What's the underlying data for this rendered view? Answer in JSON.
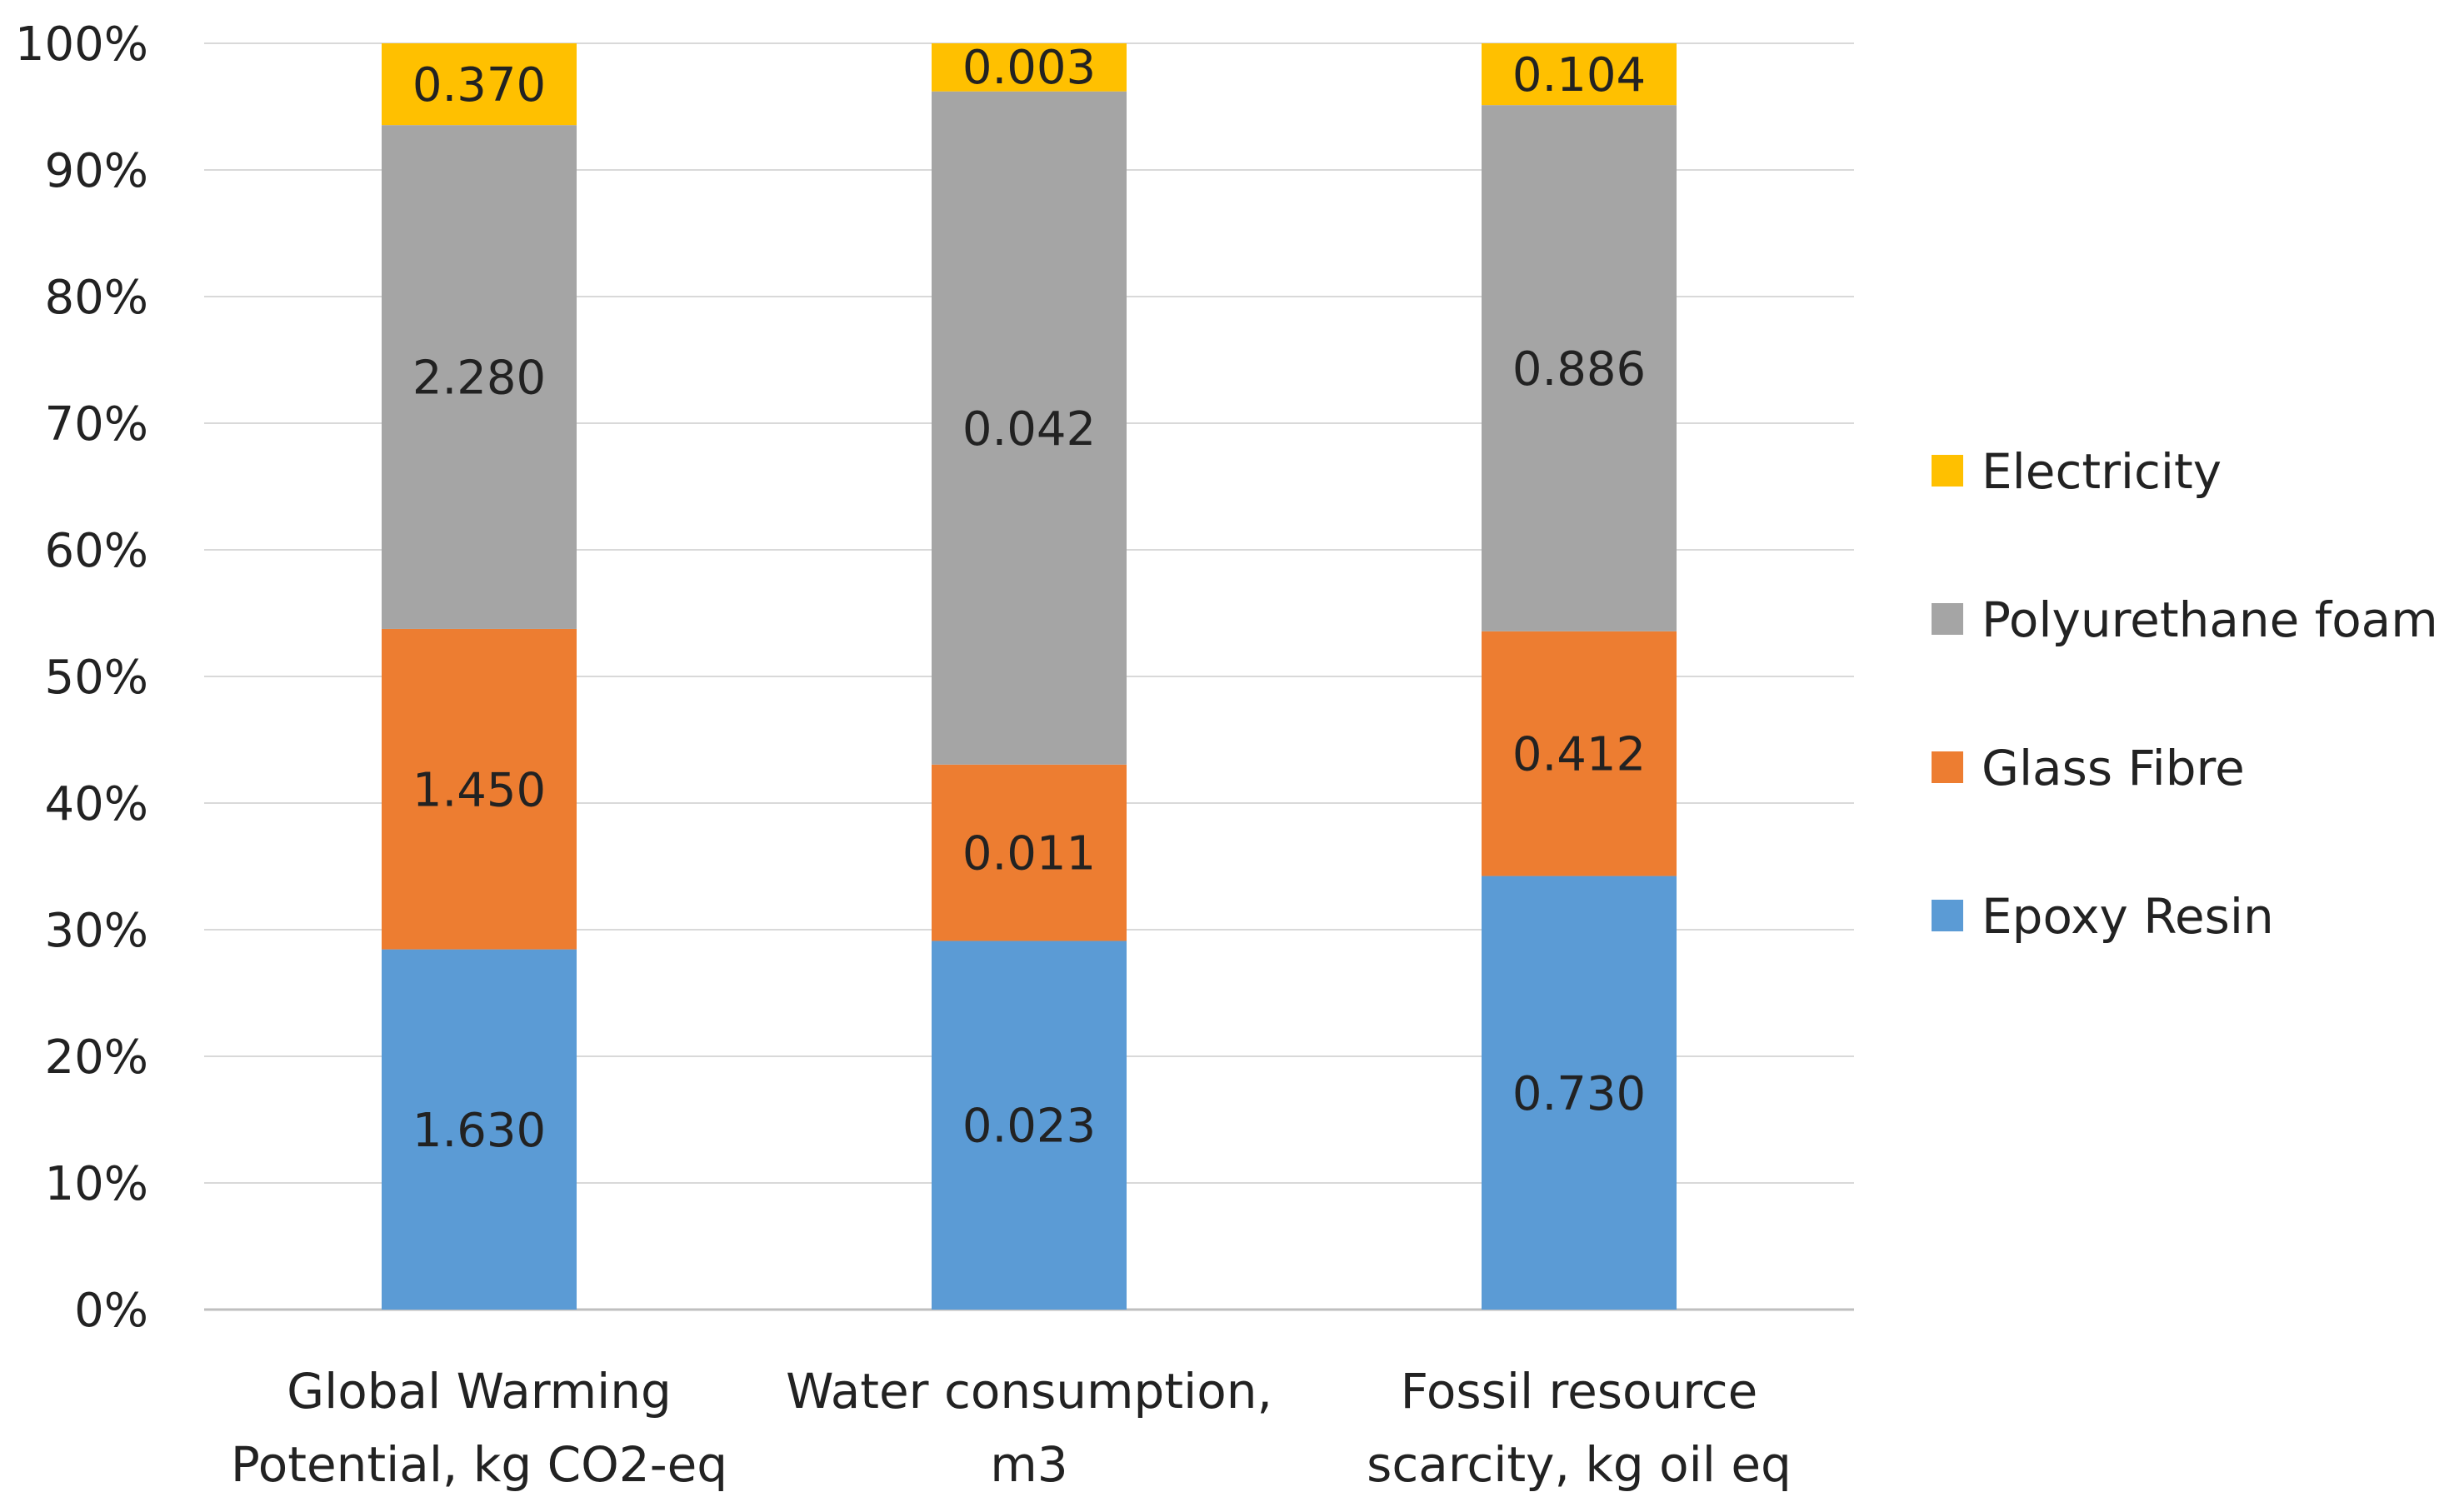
{
  "chart_data": {
    "type": "bar",
    "stacked": true,
    "normalized": true,
    "categories": [
      [
        "Global Warming",
        "Potential, kg CO2-eq"
      ],
      [
        "Water consumption,",
        "m3"
      ],
      [
        "Fossil resource",
        "scarcity, kg oil eq"
      ]
    ],
    "series": [
      {
        "name": "Epoxy Resin",
        "color": "#5B9BD5",
        "values": [
          1.63,
          0.023,
          0.73
        ],
        "labels": [
          "1.630",
          "0.023",
          "0.730"
        ]
      },
      {
        "name": "Glass Fibre",
        "color": "#ED7D31",
        "values": [
          1.45,
          0.011,
          0.412
        ],
        "labels": [
          "1.450",
          "0.011",
          "0.412"
        ]
      },
      {
        "name": "Polyurethane foam",
        "color": "#A5A5A5",
        "values": [
          2.28,
          0.042,
          0.886
        ],
        "labels": [
          "2.280",
          "0.042",
          "0.886"
        ]
      },
      {
        "name": "Electricity",
        "color": "#FFC000",
        "values": [
          0.37,
          0.003,
          0.104
        ],
        "labels": [
          "0.370",
          "0.003",
          "0.104"
        ]
      }
    ],
    "yticks": [
      "0%",
      "10%",
      "20%",
      "30%",
      "40%",
      "50%",
      "60%",
      "70%",
      "80%",
      "90%",
      "100%"
    ],
    "ylim": [
      0,
      100
    ],
    "grid": true,
    "legend_position": "right",
    "title": "",
    "xlabel": "",
    "ylabel": ""
  }
}
